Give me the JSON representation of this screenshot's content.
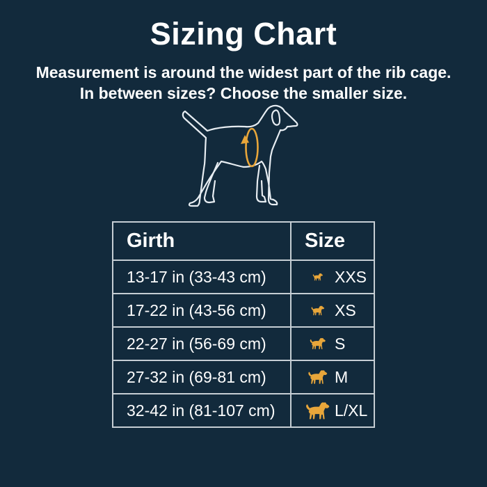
{
  "colors": {
    "background": "#122a3c",
    "accent_yellow": "#e8a63a",
    "text": "#ffffff",
    "table_border": "#c6ced4",
    "dog_outline": "#e7edf2"
  },
  "header": {
    "title": "Sizing Chart",
    "subtitle_line1": "Measurement is around the widest part of the rib cage.",
    "subtitle_line2": "In between sizes? Choose the smaller size."
  },
  "figure": {
    "name": "dog-girth-measurement-illustration",
    "band_icon": "girth-measuring-band-icon"
  },
  "sizing_table": {
    "columns": [
      "Girth",
      "Size"
    ],
    "rows": [
      {
        "girth": "13-17 in (33-43 cm)",
        "size": "XXS",
        "icon": "dog-xxs-icon"
      },
      {
        "girth": "17-22 in (43-56 cm)",
        "size": "XS",
        "icon": "dog-xs-icon"
      },
      {
        "girth": "22-27 in (56-69 cm)",
        "size": "S",
        "icon": "dog-s-icon"
      },
      {
        "girth": "27-32 in (69-81 cm)",
        "size": "M",
        "icon": "dog-m-icon"
      },
      {
        "girth": "32-42 in (81-107 cm)",
        "size": "L/XL",
        "icon": "dog-lxl-icon"
      }
    ]
  },
  "chart_data": {
    "type": "table",
    "title": "Sizing Chart",
    "columns": [
      "Girth",
      "Size"
    ],
    "rows": [
      [
        "13-17 in (33-43 cm)",
        "XXS"
      ],
      [
        "17-22 in (43-56 cm)",
        "XS"
      ],
      [
        "22-27 in (56-69 cm)",
        "S"
      ],
      [
        "27-32 in (69-81 cm)",
        "M"
      ],
      [
        "32-42 in (81-107 cm)",
        "L/XL"
      ]
    ],
    "notes": [
      "Measurement is around the widest part of the rib cage.",
      "In between sizes? Choose the smaller size."
    ]
  }
}
